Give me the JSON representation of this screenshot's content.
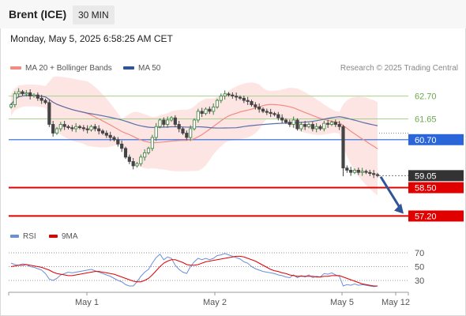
{
  "header": {
    "instrument": "Brent (ICE)",
    "timeframe": "30 MIN",
    "timestamp": "Monday, May 5, 2025 6:58:25 AM CET"
  },
  "legend": {
    "bollinger": {
      "label": "MA 20 + Bollinger Bands",
      "color": "#f28b82"
    },
    "ma50": {
      "label": "MA 50",
      "color": "#2f5597"
    }
  },
  "credit": "Research © 2025 Trading Central",
  "rsi_legend": {
    "rsi": {
      "label": "RSI",
      "color": "#6b8fd6"
    },
    "ma9": {
      "label": "9MA",
      "color": "#e00000"
    }
  },
  "chart_data": {
    "type": "candlestick",
    "ylim": [
      56.6,
      63.3
    ],
    "x_ticks": [
      "May 1",
      "May 2",
      "May 5",
      "May 12"
    ],
    "levels": [
      {
        "label": "62.70",
        "value": 62.7,
        "kind": "resistance",
        "color": "#a8d08d"
      },
      {
        "label": "61.65",
        "value": 61.65,
        "kind": "resistance",
        "color": "#a8d08d"
      },
      {
        "label": "60.70",
        "value": 60.7,
        "kind": "pivot",
        "color": "#2a66d9"
      },
      {
        "label": "59.05",
        "value": 59.05,
        "kind": "last-price",
        "color": "#333333"
      },
      {
        "label": "58.50",
        "value": 58.5,
        "kind": "support",
        "color": "#e00000"
      },
      {
        "label": "57.20",
        "value": 57.2,
        "kind": "support",
        "color": "#e00000"
      }
    ],
    "target_arrow": {
      "from": 59.0,
      "to": 57.3,
      "color": "#2f5597"
    },
    "close": [
      62.3,
      62.8,
      62.9,
      62.8,
      62.85,
      62.7,
      62.75,
      62.6,
      62.5,
      62.4,
      61.4,
      61.0,
      61.2,
      61.4,
      61.3,
      61.25,
      61.2,
      61.3,
      61.25,
      61.2,
      61.15,
      61.3,
      61.2,
      61.1,
      61.0,
      60.9,
      60.8,
      60.7,
      60.5,
      60.3,
      59.9,
      59.7,
      59.5,
      59.6,
      59.9,
      60.1,
      60.3,
      60.8,
      61.3,
      61.6,
      61.4,
      61.6,
      61.7,
      61.4,
      61.2,
      61.0,
      60.8,
      61.2,
      61.6,
      62.0,
      61.9,
      62.1,
      62.0,
      62.2,
      62.5,
      62.7,
      62.8,
      62.75,
      62.7,
      62.65,
      62.6,
      62.5,
      62.45,
      62.3,
      62.2,
      62.1,
      62.0,
      61.95,
      61.9,
      61.85,
      61.7,
      61.6,
      61.5,
      61.4,
      61.6,
      61.2,
      61.4,
      61.3,
      61.4,
      61.2,
      61.3,
      61.2,
      61.45,
      61.4,
      61.5,
      61.4,
      61.3,
      59.4,
      59.3,
      59.2,
      59.3,
      59.2,
      59.25,
      59.2,
      59.15,
      59.1,
      59.05
    ],
    "rsi": {
      "levels": [
        70,
        50,
        30
      ],
      "ylim": [
        10,
        80
      ],
      "rsi": [
        55,
        53,
        52,
        54,
        53,
        50,
        49,
        47,
        45,
        40,
        32,
        30,
        33,
        38,
        40,
        42,
        41,
        42,
        43,
        44,
        45,
        46,
        44,
        42,
        40,
        38,
        36,
        33,
        30,
        28,
        24,
        22,
        22,
        28,
        36,
        42,
        46,
        55,
        63,
        68,
        60,
        64,
        62,
        52,
        46,
        42,
        40,
        50,
        57,
        62,
        60,
        62,
        60,
        62,
        66,
        67,
        69,
        67,
        65,
        63,
        61,
        57,
        55,
        50,
        47,
        45,
        43,
        42,
        41,
        40,
        38,
        37,
        35,
        34,
        38,
        34,
        37,
        35,
        38,
        34,
        36,
        35,
        40,
        39,
        41,
        38,
        36,
        22,
        24,
        23,
        25,
        23,
        24,
        23,
        22,
        21,
        22
      ],
      "ma9": [
        50,
        51,
        52,
        52,
        53,
        52,
        51,
        50,
        49,
        47,
        45,
        42,
        40,
        39,
        38,
        37,
        37,
        38,
        39,
        40,
        41,
        42,
        43,
        43,
        42,
        41,
        40,
        39,
        37,
        35,
        33,
        31,
        29,
        28,
        28,
        30,
        33,
        38,
        44,
        50,
        55,
        58,
        60,
        60,
        58,
        56,
        53,
        52,
        52,
        53,
        55,
        57,
        58,
        59,
        60,
        61,
        62,
        63,
        64,
        65,
        65,
        64,
        62,
        60,
        58,
        55,
        52,
        49,
        46,
        44,
        43,
        41,
        40,
        38,
        37,
        36,
        36,
        36,
        36,
        36,
        35,
        35,
        36,
        36,
        37,
        37,
        37,
        35,
        33,
        31,
        29,
        27,
        25,
        24,
        23,
        22,
        22
      ]
    }
  }
}
